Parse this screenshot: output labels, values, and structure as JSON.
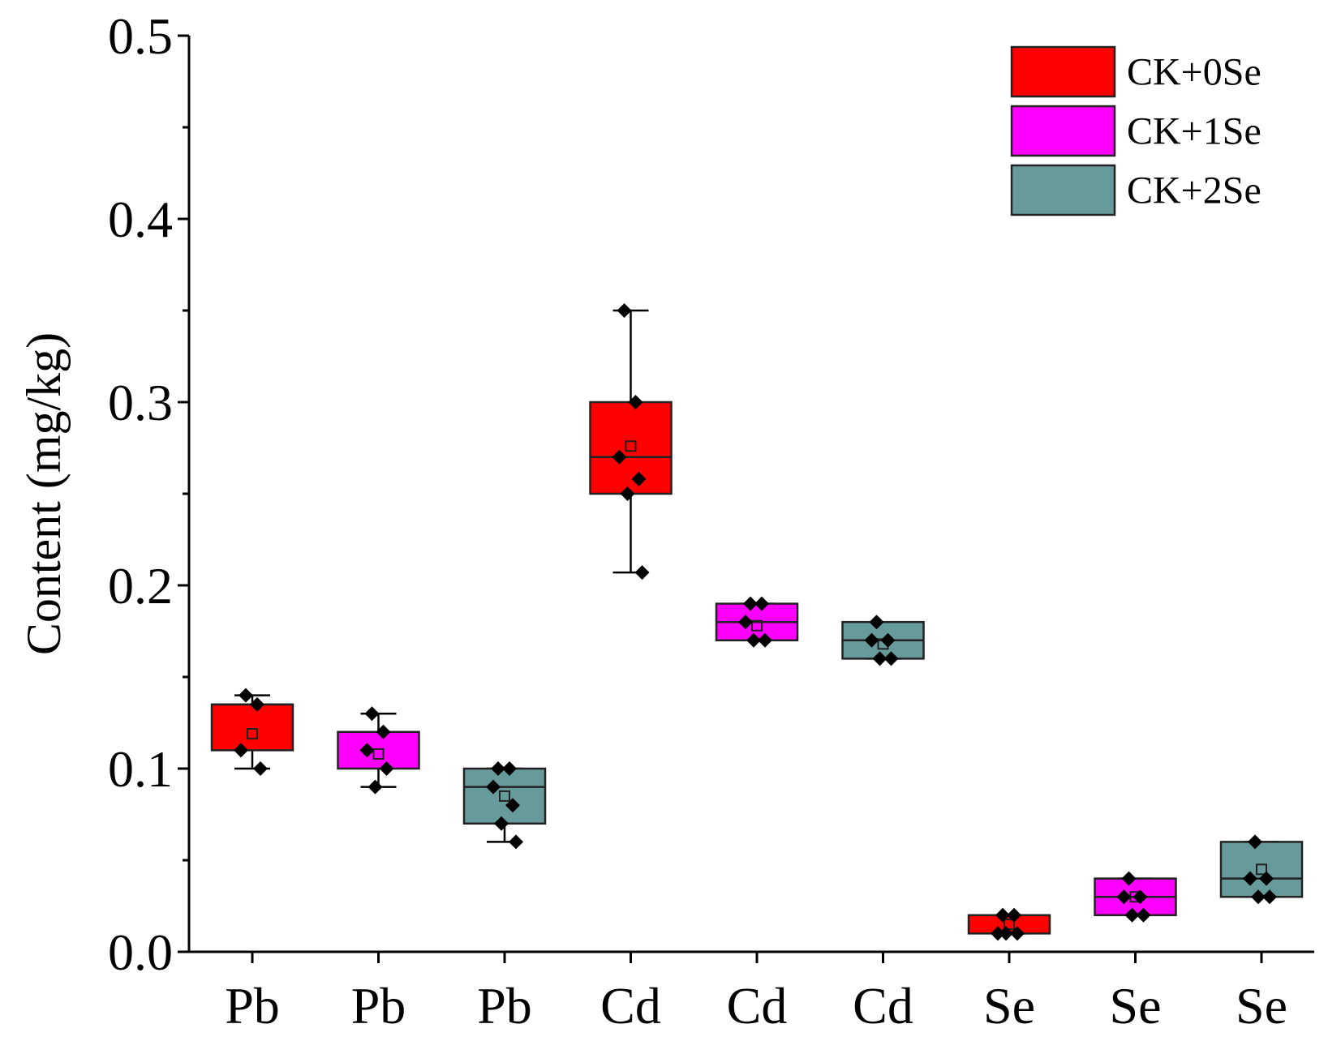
{
  "chart_data": {
    "type": "box",
    "title": "",
    "xlabel": "",
    "ylabel": "Content (mg/kg)",
    "ylim": [
      0.0,
      0.5
    ],
    "yticks": [
      "0.0",
      "0.1",
      "0.2",
      "0.3",
      "0.4",
      "0.5"
    ],
    "ytick_values": [
      0.0,
      0.1,
      0.2,
      0.3,
      0.4,
      0.5
    ],
    "categories": [
      "Pb",
      "Pb",
      "Pb",
      "Cd",
      "Cd",
      "Cd",
      "Se",
      "Se",
      "Se"
    ],
    "legend_position": "top-right",
    "series": [
      {
        "name": "CK+0Se",
        "color": "#ff0000"
      },
      {
        "name": "CK+1Se",
        "color": "#ff00ff"
      },
      {
        "name": "CK+2Se",
        "color": "#679a9a"
      }
    ],
    "boxes": [
      {
        "category": "Pb",
        "series": "CK+0Se",
        "whisker_low": 0.1,
        "q1": 0.11,
        "median": 0.135,
        "q3": 0.135,
        "whisker_high": 0.14,
        "mean": 0.119,
        "points": [
          0.14,
          0.135,
          0.11,
          0.1
        ]
      },
      {
        "category": "Pb",
        "series": "CK+1Se",
        "whisker_low": 0.09,
        "q1": 0.1,
        "median": 0.12,
        "q3": 0.12,
        "whisker_high": 0.13,
        "mean": 0.108,
        "points": [
          0.13,
          0.12,
          0.11,
          0.1,
          0.09
        ]
      },
      {
        "category": "Pb",
        "series": "CK+2Se",
        "whisker_low": 0.06,
        "q1": 0.07,
        "median": 0.09,
        "q3": 0.1,
        "whisker_high": 0.1,
        "mean": 0.085,
        "points": [
          0.1,
          0.1,
          0.09,
          0.08,
          0.07,
          0.06
        ]
      },
      {
        "category": "Cd",
        "series": "CK+0Se",
        "whisker_low": 0.207,
        "q1": 0.25,
        "median": 0.27,
        "q3": 0.3,
        "whisker_high": 0.35,
        "mean": 0.276,
        "points": [
          0.35,
          0.3,
          0.27,
          0.258,
          0.25,
          0.207
        ]
      },
      {
        "category": "Cd",
        "series": "CK+1Se",
        "whisker_low": 0.17,
        "q1": 0.17,
        "median": 0.18,
        "q3": 0.19,
        "whisker_high": 0.19,
        "mean": 0.178,
        "points": [
          0.19,
          0.19,
          0.18,
          0.17,
          0.17
        ]
      },
      {
        "category": "Cd",
        "series": "CK+2Se",
        "whisker_low": 0.16,
        "q1": 0.16,
        "median": 0.17,
        "q3": 0.18,
        "whisker_high": 0.18,
        "mean": 0.168,
        "points": [
          0.18,
          0.17,
          0.17,
          0.16,
          0.16
        ]
      },
      {
        "category": "Se",
        "series": "CK+0Se",
        "whisker_low": 0.01,
        "q1": 0.01,
        "median": 0.02,
        "q3": 0.02,
        "whisker_high": 0.02,
        "mean": 0.015,
        "points": [
          0.02,
          0.02,
          0.01,
          0.01,
          0.01
        ]
      },
      {
        "category": "Se",
        "series": "CK+1Se",
        "whisker_low": 0.02,
        "q1": 0.02,
        "median": 0.03,
        "q3": 0.04,
        "whisker_high": 0.04,
        "mean": 0.03,
        "points": [
          0.04,
          0.03,
          0.03,
          0.02,
          0.02
        ]
      },
      {
        "category": "Se",
        "series": "CK+2Se",
        "whisker_low": 0.03,
        "q1": 0.03,
        "median": 0.04,
        "q3": 0.06,
        "whisker_high": 0.06,
        "mean": 0.045,
        "points": [
          0.06,
          0.04,
          0.04,
          0.03,
          0.03
        ]
      }
    ]
  }
}
